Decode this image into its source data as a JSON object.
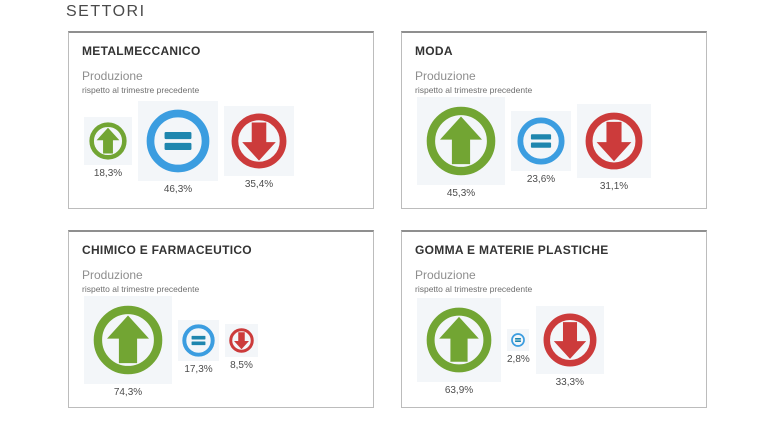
{
  "page": {
    "title": "SETTORI"
  },
  "colors": {
    "up": "#72a533",
    "down": "#cc3b3b",
    "equal_ring": "#3b9de0",
    "equal_sign": "#1e86ae",
    "tile_background": "#f3f6f9"
  },
  "panels": [
    {
      "name": "METALMECCANICO",
      "metric_title": "Produzione",
      "metric_subtitle": "rispetto al trimestre precedente",
      "icons": [
        {
          "type": "up",
          "icon": "up-arrow-icon",
          "label": "18,3%",
          "size": 38
        },
        {
          "type": "equal",
          "icon": "equals-icon",
          "label": "46,3%",
          "size": 64
        },
        {
          "type": "down",
          "icon": "down-arrow-icon",
          "label": "35,4%",
          "size": 56
        }
      ]
    },
    {
      "name": "MODA",
      "metric_title": "Produzione",
      "metric_subtitle": "rispetto al trimestre precedente",
      "icons": [
        {
          "type": "up",
          "icon": "up-arrow-icon",
          "label": "45,3%",
          "size": 70
        },
        {
          "type": "equal",
          "icon": "equals-icon",
          "label": "23,6%",
          "size": 48
        },
        {
          "type": "down",
          "icon": "down-arrow-icon",
          "label": "31,1%",
          "size": 58
        }
      ]
    },
    {
      "name": "CHIMICO E FARMACEUTICO",
      "metric_title": "Produzione",
      "metric_subtitle": "rispetto al trimestre precedente",
      "icons": [
        {
          "type": "up",
          "icon": "up-arrow-icon",
          "label": "74,3%",
          "size": 70
        },
        {
          "type": "equal",
          "icon": "equals-icon",
          "label": "17,3%",
          "size": 33
        },
        {
          "type": "down",
          "icon": "down-arrow-icon",
          "label": "8,5%",
          "size": 25
        }
      ]
    },
    {
      "name": "GOMMA E MATERIE PLASTICHE",
      "metric_title": "Produzione",
      "metric_subtitle": "rispetto al trimestre precedente",
      "icons": [
        {
          "type": "up",
          "icon": "up-arrow-icon",
          "label": "63,9%",
          "size": 66
        },
        {
          "type": "equal",
          "icon": "equals-icon",
          "label": "2,8%",
          "size": 14
        },
        {
          "type": "down",
          "icon": "down-arrow-icon",
          "label": "33,3%",
          "size": 54
        }
      ]
    }
  ],
  "chart_data": [
    {
      "type": "pie",
      "title": "METALMECCANICO",
      "subtitle": "Produzione rispetto al trimestre precedente",
      "categories": [
        "up",
        "equal",
        "down"
      ],
      "values": [
        18.3,
        46.3,
        35.4
      ],
      "unit": "%"
    },
    {
      "type": "pie",
      "title": "MODA",
      "subtitle": "Produzione rispetto al trimestre precedente",
      "categories": [
        "up",
        "equal",
        "down"
      ],
      "values": [
        45.3,
        23.6,
        31.1
      ],
      "unit": "%"
    },
    {
      "type": "pie",
      "title": "CHIMICO E FARMACEUTICO",
      "subtitle": "Produzione rispetto al trimestre precedente",
      "categories": [
        "up",
        "equal",
        "down"
      ],
      "values": [
        74.3,
        17.3,
        8.5
      ],
      "unit": "%"
    },
    {
      "type": "pie",
      "title": "GOMMA E MATERIE PLASTICHE",
      "subtitle": "Produzione rispetto al trimestre precedente",
      "categories": [
        "up",
        "equal",
        "down"
      ],
      "values": [
        63.9,
        2.8,
        33.3
      ],
      "unit": "%"
    }
  ]
}
